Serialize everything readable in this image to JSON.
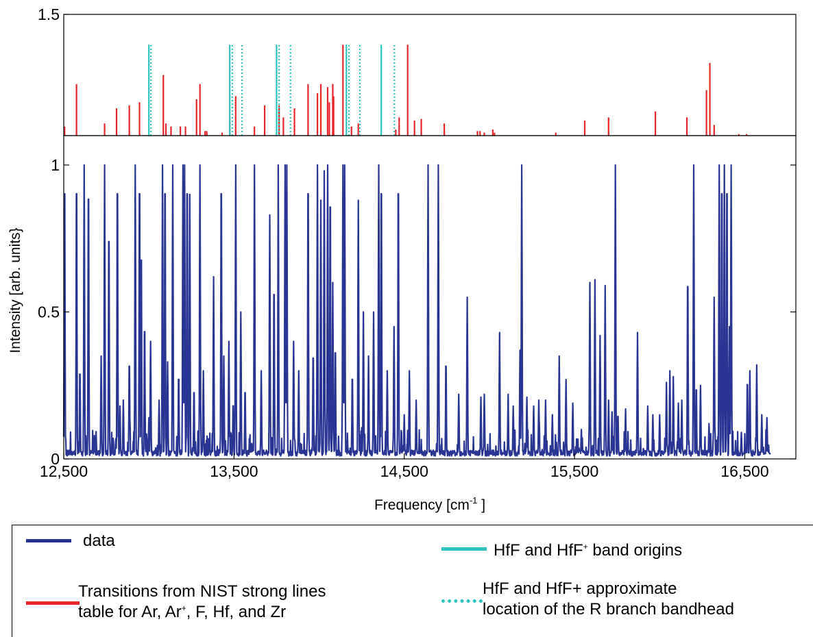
{
  "chart_data": [
    {
      "type": "line",
      "panel": "top",
      "title": "",
      "xlabel": "",
      "ylabel": "",
      "xlim": [
        12500,
        16800
      ],
      "ylim": [
        1.1,
        1.5
      ],
      "yticks": [
        1.5
      ],
      "ytick_labels": [
        "1.5"
      ],
      "grid": false,
      "series": [
        {
          "name": "Transitions from NIST strong lines table for Ar, Ar+, F, Hf, and Zr",
          "style": "stems",
          "color": "#e8262a",
          "x": [
            12505,
            12575,
            12740,
            12810,
            12885,
            12945,
            13085,
            13100,
            13130,
            13185,
            13215,
            13280,
            13300,
            13330,
            13340,
            13430,
            13475,
            13510,
            13620,
            13680,
            13765,
            13790,
            13855,
            13935,
            13990,
            14010,
            14050,
            14060,
            14080,
            14085,
            14140,
            14190,
            14230,
            14450,
            14470,
            14520,
            14560,
            14600,
            14735,
            14930,
            14945,
            14970,
            15020,
            15030,
            15390,
            15560,
            15700,
            15975,
            16160,
            16275,
            16295,
            16320,
            16465,
            16510
          ],
          "y": [
            1.13,
            1.27,
            1.14,
            1.19,
            1.2,
            1.21,
            1.3,
            1.14,
            1.13,
            1.13,
            1.13,
            1.22,
            1.27,
            1.115,
            1.115,
            1.11,
            1.16,
            1.23,
            1.13,
            1.2,
            1.2,
            1.16,
            1.19,
            1.27,
            1.24,
            1.27,
            1.26,
            1.21,
            1.27,
            1.23,
            1.4,
            1.13,
            1.14,
            1.12,
            1.16,
            1.4,
            1.15,
            1.155,
            1.14,
            1.115,
            1.115,
            1.11,
            1.12,
            1.11,
            1.11,
            1.15,
            1.16,
            1.18,
            1.16,
            1.25,
            1.34,
            1.135,
            1.105,
            1.105
          ]
        },
        {
          "name": "HfF and HfF+ band origins",
          "style": "stems",
          "color": "#2cc3c1",
          "x": [
            13000,
            13475,
            13750,
            14160,
            14365
          ],
          "y": [
            1.4,
            1.4,
            1.4,
            1.4,
            1.4
          ]
        },
        {
          "name": "HfF and HfF+ approximate location of the R branch bandhead",
          "style": "dotted-stems",
          "color": "#2cc3c1",
          "x": [
            13000,
            13478,
            13535,
            13753,
            13820,
            14163,
            14227,
            14430
          ],
          "y": [
            1.4,
            1.4,
            1.4,
            1.4,
            1.4,
            1.4,
            1.4,
            1.4
          ]
        }
      ]
    },
    {
      "type": "line",
      "panel": "bottom",
      "title": "",
      "xlabel": "Frequency [cm",
      "xlabel_sup": "-1",
      "xlabel_end": " ]",
      "ylabel": "Intensity [arb. units}",
      "xlim": [
        12500,
        16800
      ],
      "ylim": [
        0,
        1.1
      ],
      "xticks": [
        12500,
        13500,
        14500,
        15500,
        16500
      ],
      "xtick_labels": [
        "12,500",
        "13,500",
        "14,500",
        "15,500",
        "16,500"
      ],
      "yticks": [
        0,
        0.5,
        1
      ],
      "ytick_labels": [
        "0",
        "0.5",
        "1"
      ],
      "grid": false,
      "series": [
        {
          "name": "data",
          "style": "spectrum",
          "color": "#283593",
          "x_range": [
            12500,
            16650
          ],
          "peaks": [
            [
              12505,
              1.0
            ],
            [
              12575,
              1.0
            ],
            [
              12595,
              0.32
            ],
            [
              12620,
              1.0
            ],
            [
              12645,
              0.98
            ],
            [
              12680,
              0.08
            ],
            [
              12720,
              0.35
            ],
            [
              12740,
              1.0
            ],
            [
              12765,
              0.82
            ],
            [
              12790,
              0.07
            ],
            [
              12815,
              1.0
            ],
            [
              12830,
              0.18
            ],
            [
              12850,
              0.2
            ],
            [
              12885,
              0.35
            ],
            [
              12920,
              1.0
            ],
            [
              12945,
              1.0
            ],
            [
              12955,
              0.75
            ],
            [
              12975,
              0.48
            ],
            [
              13000,
              0.14
            ],
            [
              13010,
              0.4
            ],
            [
              13060,
              0.2
            ],
            [
              13080,
              1.0
            ],
            [
              13095,
              1.0
            ],
            [
              13110,
              0.33
            ],
            [
              13140,
              1.0
            ],
            [
              13175,
              0.3
            ],
            [
              13200,
              1.0
            ],
            [
              13210,
              1.0
            ],
            [
              13225,
              1.0
            ],
            [
              13240,
              0.9
            ],
            [
              13265,
              0.25
            ],
            [
              13300,
              1.0
            ],
            [
              13320,
              0.3
            ],
            [
              13380,
              0.62
            ],
            [
              13425,
              1.0
            ],
            [
              13440,
              0.35
            ],
            [
              13470,
              0.4
            ],
            [
              13495,
              0.2
            ],
            [
              13510,
              1.0
            ],
            [
              13540,
              0.5
            ],
            [
              13565,
              0.25
            ],
            [
              13620,
              1.0
            ],
            [
              13660,
              0.3
            ],
            [
              13710,
              0.83
            ],
            [
              13735,
              0.62
            ],
            [
              13760,
              1.0
            ],
            [
              13800,
              1.0
            ],
            [
              13810,
              1.0
            ],
            [
              13850,
              0.4
            ],
            [
              13880,
              0.3
            ],
            [
              13935,
              1.0
            ],
            [
              13965,
              0.38
            ],
            [
              13990,
              1.0
            ],
            [
              14010,
              0.88
            ],
            [
              14030,
              0.98
            ],
            [
              14050,
              1.0
            ],
            [
              14065,
              0.95
            ],
            [
              14080,
              0.6
            ],
            [
              14095,
              0.4
            ],
            [
              14140,
              1.0
            ],
            [
              14150,
              1.0
            ],
            [
              14195,
              0.3
            ],
            [
              14230,
              0.88
            ],
            [
              14260,
              0.5
            ],
            [
              14290,
              0.35
            ],
            [
              14320,
              0.5
            ],
            [
              14350,
              1.0
            ],
            [
              14365,
              1.0
            ],
            [
              14400,
              0.3
            ],
            [
              14440,
              0.45
            ],
            [
              14465,
              1.0
            ],
            [
              14500,
              0.15
            ],
            [
              14530,
              0.3
            ],
            [
              14570,
              0.2
            ],
            [
              14640,
              1.0
            ],
            [
              14700,
              1.0
            ],
            [
              14745,
              0.35
            ],
            [
              14820,
              0.22
            ],
            [
              14870,
              0.55
            ],
            [
              14950,
              0.21
            ],
            [
              14970,
              0.22
            ],
            [
              15060,
              0.43
            ],
            [
              15110,
              0.22
            ],
            [
              15140,
              0.18
            ],
            [
              15180,
              0.37
            ],
            [
              15190,
              1.0
            ],
            [
              15220,
              0.21
            ],
            [
              15260,
              0.18
            ],
            [
              15290,
              0.2
            ],
            [
              15330,
              0.2
            ],
            [
              15370,
              0.15
            ],
            [
              15410,
              0.35
            ],
            [
              15450,
              0.27
            ],
            [
              15490,
              0.19
            ],
            [
              15540,
              0.1
            ],
            [
              15590,
              0.6
            ],
            [
              15620,
              0.61
            ],
            [
              15650,
              0.42
            ],
            [
              15680,
              0.59
            ],
            [
              15700,
              0.2
            ],
            [
              15720,
              0.16
            ],
            [
              15740,
              1.0
            ],
            [
              15755,
              0.16
            ],
            [
              15800,
              0.17
            ],
            [
              15870,
              0.43
            ],
            [
              15930,
              0.18
            ],
            [
              15960,
              0.15
            ],
            [
              16000,
              0.15
            ],
            [
              16040,
              0.26
            ],
            [
              16060,
              0.3
            ],
            [
              16080,
              0.28
            ],
            [
              16110,
              0.19
            ],
            [
              16130,
              0.2
            ],
            [
              16165,
              0.65
            ],
            [
              16200,
              1.0
            ],
            [
              16215,
              0.26
            ],
            [
              16240,
              0.25
            ],
            [
              16290,
              0.12
            ],
            [
              16320,
              0.55
            ],
            [
              16350,
              1.0
            ],
            [
              16365,
              1.0
            ],
            [
              16380,
              1.0
            ],
            [
              16395,
              1.0
            ],
            [
              16410,
              0.45
            ],
            [
              16420,
              1.0
            ],
            [
              16480,
              0.09
            ],
            [
              16515,
              0.28
            ],
            [
              16530,
              0.3
            ],
            [
              16570,
              0.32
            ],
            [
              16600,
              0.15
            ],
            [
              16630,
              0.14
            ]
          ]
        }
      ]
    }
  ],
  "legend": {
    "placement": "below",
    "items": [
      {
        "text": "data",
        "color": "#283593",
        "style": "solid"
      },
      {
        "text_pre": "HfF and HfF",
        "text_sup": "+",
        "text_post": " band origins",
        "color": "#2cc3c1",
        "style": "solid"
      },
      {
        "line1": "Transitions from NIST strong lines",
        "line2_pre": "table for Ar, Ar",
        "line2_sup": "+",
        "line2_post": ", F, Hf, and Zr",
        "color": "#e8262a",
        "style": "solid"
      },
      {
        "line1": "HfF and HfF+ approximate",
        "line2": "location of the R branch bandhead",
        "color": "#2cc3c1",
        "style": "dotted"
      }
    ]
  }
}
